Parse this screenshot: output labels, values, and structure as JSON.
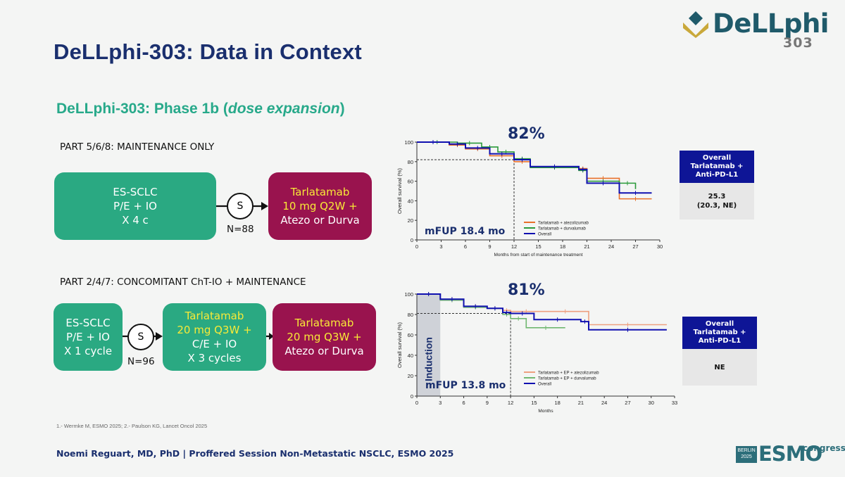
{
  "logo": {
    "name": "DeLLphi",
    "number": "303"
  },
  "slide_title": "DeLLphi-303: Data in Context",
  "subtitle": {
    "prefix": "DeLLphi-303: Phase 1b (",
    "italic": "dose expansion",
    "suffix": ")"
  },
  "part1": {
    "heading": "PART 5/6/8: MAINTENANCE ONLY",
    "box1": [
      "ES-SCLC",
      "P/E + IO",
      "X 4 c"
    ],
    "circle": "S",
    "n_label": "N=88",
    "box2_highlight": [
      "Tarlatamab",
      "10 mg Q2W +"
    ],
    "box2_rest": "Atezo or Durva"
  },
  "part2": {
    "heading": "PART 2/4/7: CONCOMITANT ChT-IO + MAINTENANCE",
    "box1": [
      "ES-SCLC",
      "P/E + IO",
      "X 1 cycle"
    ],
    "circle": "S",
    "n_label": "N=96",
    "box2_highlight": [
      "Tarlatamab",
      "20 mg Q3W +"
    ],
    "box2_rest": [
      "C/E + IO",
      "X 3 cycles"
    ],
    "box3_highlight": [
      "Tarlatamab",
      "20 mg Q3W +"
    ],
    "box3_rest": "Atezo or Durva"
  },
  "km1": {
    "pct_label": "82%",
    "mfup": "mFUP 18.4 mo",
    "ylabel": "Overall survival (%)",
    "xlabel": "Months from start of maintenance treatment",
    "legend": [
      "Tarlatamab + atezolizumab",
      "Tarlatamab + durvalumab",
      "Overall"
    ],
    "table_head": [
      "Overall",
      "Tarlatamab +",
      "Anti-PD-L1"
    ],
    "table_body": [
      "25.3",
      "(20.3, NE)"
    ]
  },
  "km2": {
    "pct_label": "81%",
    "mfup": "mFUP 13.8 mo",
    "induction": "Induction",
    "ylabel": "Overall survival (%)",
    "xlabel": "Months",
    "legend": [
      "Tarlatamab + EP + atezolizumab",
      "Tarlatamab + EP + durvalumab",
      "Overall"
    ],
    "table_head": [
      "Overall",
      "Tarlatamab +",
      "Anti-PD-L1"
    ],
    "table_body": [
      "NE"
    ]
  },
  "chart_data": [
    {
      "type": "line",
      "title": "82%",
      "xlabel": "Months from start of maintenance treatment",
      "ylabel": "Overall survival (%)",
      "xlim": [
        0,
        30
      ],
      "ylim": [
        0,
        100
      ],
      "xticks": [
        0,
        3,
        6,
        9,
        12,
        15,
        18,
        21,
        24,
        27,
        30
      ],
      "yticks": [
        0,
        20,
        40,
        60,
        80,
        100
      ],
      "reference": {
        "x": 12,
        "y": 82
      },
      "series": [
        {
          "name": "Tarlatamab + atezolizumab",
          "color": "#e8702a",
          "x": [
            0,
            4,
            6,
            9,
            12,
            14,
            20,
            21,
            25,
            29
          ],
          "y": [
            100,
            97,
            93,
            86,
            80,
            75,
            73,
            63,
            42,
            42
          ]
        },
        {
          "name": "Tarlatamab + durvalumab",
          "color": "#2a9a3a",
          "x": [
            0,
            5,
            8,
            10,
            12,
            14,
            20,
            21,
            25,
            27
          ],
          "y": [
            100,
            99,
            95,
            90,
            83,
            74,
            71,
            60,
            58,
            52
          ]
        },
        {
          "name": "Overall",
          "color": "#1010b0",
          "x": [
            0,
            4,
            6,
            9,
            12,
            14,
            20,
            21,
            25,
            29
          ],
          "y": [
            100,
            98,
            94,
            88,
            82,
            75,
            72,
            58,
            48,
            48
          ]
        }
      ]
    },
    {
      "type": "line",
      "title": "81%",
      "xlabel": "Months",
      "ylabel": "Overall survival (%)",
      "xlim": [
        0,
        33
      ],
      "ylim": [
        0,
        100
      ],
      "xticks": [
        0,
        3,
        6,
        9,
        12,
        15,
        18,
        21,
        24,
        27,
        30,
        33
      ],
      "yticks": [
        0,
        20,
        40,
        60,
        80,
        100
      ],
      "reference": {
        "x": 12,
        "y": 81
      },
      "series": [
        {
          "name": "Tarlatamab + EP + atezolizumab",
          "color": "#eea080",
          "x": [
            0,
            3,
            6,
            9,
            11,
            12,
            16,
            22,
            32
          ],
          "y": [
            100,
            95,
            88,
            86,
            84,
            83,
            83,
            70,
            70
          ]
        },
        {
          "name": "Tarlatamab + EP + durvalumab",
          "color": "#70b870",
          "x": [
            0,
            3,
            6,
            9,
            11,
            12,
            14,
            19
          ],
          "y": [
            100,
            94,
            87,
            86,
            80,
            76,
            67,
            67
          ]
        },
        {
          "name": "Overall",
          "color": "#1010b0",
          "x": [
            0,
            3,
            6,
            9,
            11,
            12,
            15,
            21,
            22,
            32
          ],
          "y": [
            100,
            95,
            88,
            86,
            82,
            81,
            75,
            73,
            65,
            65
          ]
        }
      ]
    }
  ],
  "references": "1.- Wermke M, ESMO 2025; 2.- Paulson KG, Lancet Oncol 2025",
  "footer": "Noemi Reguart, MD, PhD | Proffered Session Non-Metastatic NSCLC, ESMO 2025",
  "congress_logo": {
    "city": "BERLIN",
    "year": "2025",
    "name": "ESMO",
    "word": "congress"
  }
}
